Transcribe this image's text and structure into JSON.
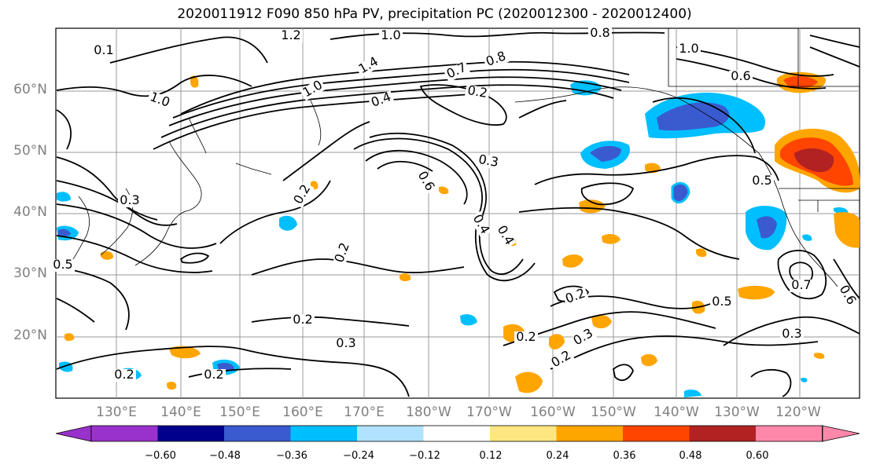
{
  "title": "2020011912 F090 850 hPa PV, precipitation PC (2020012300 - 2020012400)",
  "lat_labels": [
    "60°N",
    "50°N",
    "40°N",
    "30°N",
    "20°N"
  ],
  "lon_labels": [
    "130°E",
    "140°E",
    "150°E",
    "160°E",
    "170°E",
    "180°W",
    "170°W",
    "160°W",
    "150°W",
    "140°W",
    "130°W",
    "120°W"
  ],
  "colorbar": {
    "ticks": [
      "−0.60",
      "−0.48",
      "−0.36",
      "−0.24",
      "−0.12",
      "0.12",
      "0.24",
      "0.36",
      "0.48",
      "0.60"
    ],
    "colors": [
      "#9932cc",
      "#00008b",
      "#3a5bd0",
      "#00bfff",
      "#b0e2ff",
      "#ffffff",
      "#ffe680",
      "#ffa500",
      "#ff4500",
      "#b22222",
      "#ff88aa"
    ]
  },
  "contour_labels": [
    {
      "text": "1.2"
    },
    {
      "text": "1.0"
    },
    {
      "text": "0.8"
    },
    {
      "text": "1.0"
    },
    {
      "text": "0.6"
    },
    {
      "text": "0.7"
    },
    {
      "text": "0.8"
    },
    {
      "text": "1.4"
    },
    {
      "text": "1.0"
    },
    {
      "text": "0.4"
    },
    {
      "text": "0.2"
    },
    {
      "text": "1.0"
    },
    {
      "text": "0.3"
    },
    {
      "text": "0.2"
    },
    {
      "text": "0.3"
    },
    {
      "text": "0.6"
    },
    {
      "text": "0.4"
    },
    {
      "text": "0.4"
    },
    {
      "text": "0.5"
    },
    {
      "text": "0.2"
    },
    {
      "text": "0.2"
    },
    {
      "text": "0.3"
    },
    {
      "text": "0.2"
    },
    {
      "text": "0.2"
    },
    {
      "text": "0.3"
    },
    {
      "text": "0.2"
    },
    {
      "text": "0.2"
    },
    {
      "text": "0.5"
    },
    {
      "text": "0.7"
    },
    {
      "text": "0.3"
    },
    {
      "text": "0.2"
    },
    {
      "text": "0.6"
    },
    {
      "text": "0.1"
    },
    {
      "text": "0.5"
    }
  ]
}
